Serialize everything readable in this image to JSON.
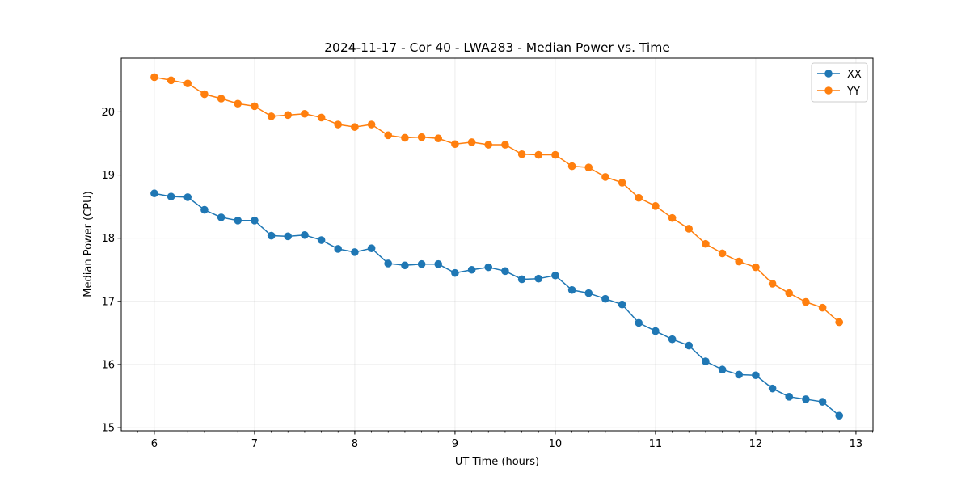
{
  "chart_data": {
    "type": "line",
    "title": "2024-11-17 - Cor 40 - LWA283 - Median Power vs. Time",
    "xlabel": "UT Time (hours)",
    "ylabel": "Median Power (CPU)",
    "xlim": [
      5.67,
      13.17
    ],
    "ylim": [
      14.95,
      20.85
    ],
    "xticks": [
      "6",
      "7",
      "8",
      "9",
      "10",
      "11",
      "12",
      "13"
    ],
    "xtick_values": [
      6,
      7,
      8,
      9,
      10,
      11,
      12,
      13
    ],
    "yticks": [
      "15",
      "16",
      "17",
      "18",
      "19",
      "20"
    ],
    "ytick_values": [
      15,
      16,
      17,
      18,
      19,
      20
    ],
    "grid": true,
    "legend_position": "top-right",
    "x": [
      6.0,
      6.167,
      6.333,
      6.5,
      6.667,
      6.833,
      7.0,
      7.167,
      7.333,
      7.5,
      7.667,
      7.833,
      8.0,
      8.167,
      8.333,
      8.5,
      8.667,
      8.833,
      9.0,
      9.167,
      9.333,
      9.5,
      9.667,
      9.833,
      10.0,
      10.167,
      10.333,
      10.5,
      10.667,
      10.833,
      11.0,
      11.167,
      11.333,
      11.5,
      11.667,
      11.833,
      12.0,
      12.167,
      12.333,
      12.5,
      12.667,
      12.833
    ],
    "series": [
      {
        "name": "XX",
        "color": "#1f77b4",
        "values": [
          18.71,
          18.66,
          18.65,
          18.45,
          18.33,
          18.28,
          18.28,
          18.04,
          18.03,
          18.05,
          17.97,
          17.83,
          17.78,
          17.84,
          17.6,
          17.57,
          17.59,
          17.59,
          17.45,
          17.5,
          17.54,
          17.48,
          17.35,
          17.36,
          17.41,
          17.18,
          17.13,
          17.04,
          16.95,
          16.66,
          16.53,
          16.4,
          16.3,
          16.05,
          15.92,
          15.84,
          15.83,
          15.62,
          15.49,
          15.45,
          15.41,
          15.19
        ]
      },
      {
        "name": "YY",
        "color": "#ff7f0e",
        "values": [
          20.55,
          20.5,
          20.45,
          20.28,
          20.21,
          20.13,
          20.09,
          19.93,
          19.95,
          19.97,
          19.91,
          19.8,
          19.76,
          19.8,
          19.63,
          19.59,
          19.6,
          19.58,
          19.49,
          19.52,
          19.48,
          19.48,
          19.33,
          19.32,
          19.32,
          19.14,
          19.12,
          18.97,
          18.88,
          18.64,
          18.51,
          18.32,
          18.15,
          17.91,
          17.76,
          17.63,
          17.54,
          17.28,
          17.13,
          16.99,
          16.9,
          16.67
        ]
      }
    ]
  }
}
